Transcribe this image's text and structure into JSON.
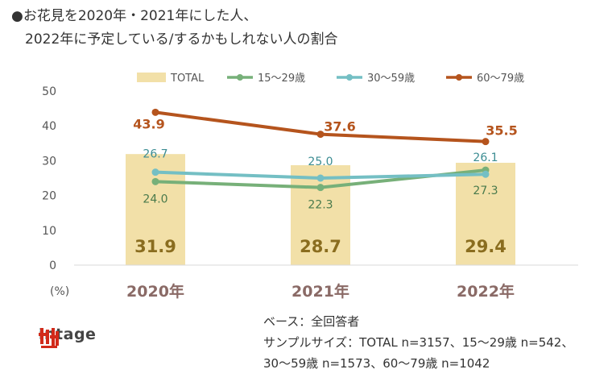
{
  "title_line1": "●お花見を2020年・2021年にした人、",
  "title_line2": "2022年に予定している/するかもしれない人の割合",
  "chart_data": {
    "type": "bar",
    "categories": [
      "2020年",
      "2021年",
      "2022年"
    ],
    "unit_label": "(%)",
    "ylim": [
      0,
      50
    ],
    "yticks": [
      0,
      10,
      20,
      30,
      40,
      50
    ],
    "bar_series": {
      "name": "TOTAL",
      "values": [
        31.9,
        28.7,
        29.4
      ],
      "color": "#f2e0a8",
      "label_color": "#8a6d1f"
    },
    "line_series": [
      {
        "name": "15〜29歳",
        "values": [
          24.0,
          22.3,
          27.3
        ],
        "labels": [
          "24.0",
          "22.3",
          "27.3"
        ],
        "color": "#77b079",
        "label_color": "#4a7a4c"
      },
      {
        "name": "30〜59歳",
        "values": [
          26.7,
          25.0,
          26.1
        ],
        "labels": [
          "26.7",
          "25.0",
          "26.1"
        ],
        "color": "#74bfc4",
        "label_color": "#3c8d93"
      },
      {
        "name": "60〜79歳",
        "values": [
          43.9,
          37.6,
          35.5
        ],
        "labels": [
          "43.9",
          "37.6",
          "35.5"
        ],
        "color": "#b5541d",
        "label_color": "#b5541d"
      }
    ],
    "bar_labels": [
      "31.9",
      "28.7",
      "29.4"
    ],
    "legend": [
      "TOTAL",
      "15〜29歳",
      "30〜59歳",
      "60〜79歳"
    ]
  },
  "notes": {
    "base": "ベース：全回答者",
    "sample_line1": "サンプルサイズ：TOTAL n=3157、15〜29歳  n=542、",
    "sample_line2": "30〜59歳 n=1573、60〜79歳  n=1042"
  },
  "logo": {
    "text": "intage"
  },
  "colors": {
    "axis_text": "#555555",
    "category_text": "#8a6a66"
  }
}
